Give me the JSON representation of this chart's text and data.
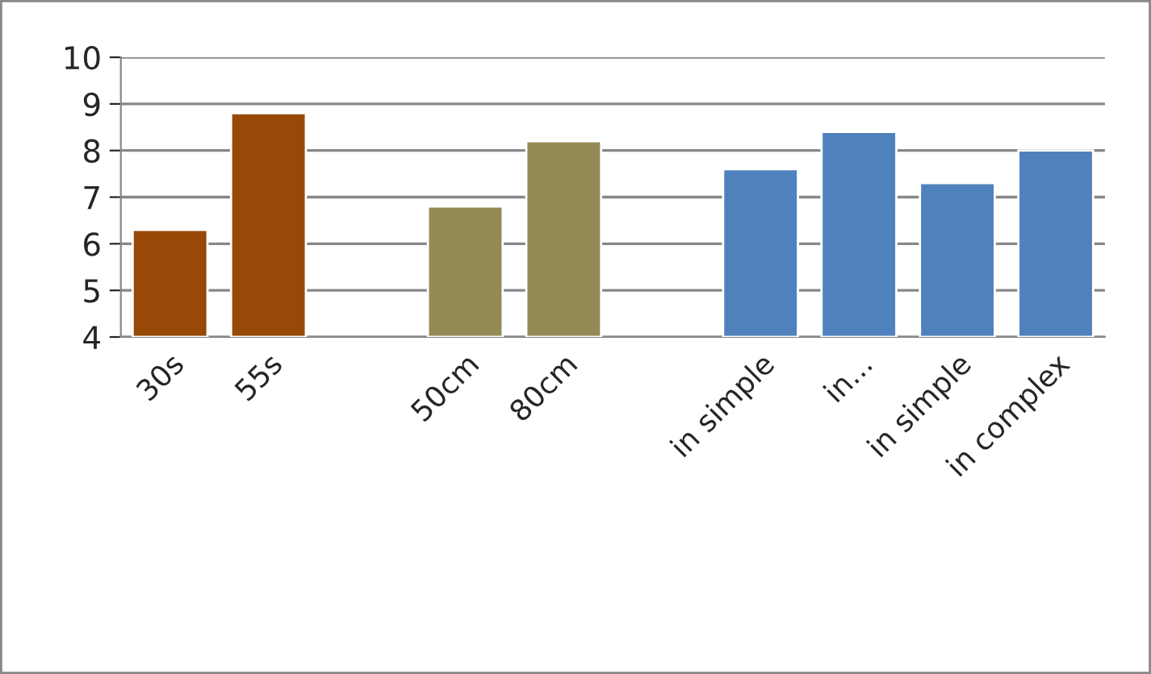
{
  "chart_data": {
    "type": "bar",
    "categories": [
      "30s",
      "55s",
      null,
      "50cm",
      "80cm",
      null,
      "in simple",
      "in...",
      "in simple",
      "in complex"
    ],
    "values": [
      6.3,
      8.8,
      null,
      6.8,
      8.2,
      null,
      7.6,
      8.4,
      7.3,
      8.0
    ],
    "colors": [
      "#984807",
      "#984807",
      "#984807",
      "#948a54",
      "#948a54",
      "#948a54",
      "#4f81bd",
      "#4f81bd",
      "#4f81bd",
      "#4f81bd"
    ],
    "ylim": [
      4,
      10
    ],
    "yticks": [
      4,
      5,
      6,
      7,
      8,
      9,
      10
    ],
    "grid": "y"
  }
}
